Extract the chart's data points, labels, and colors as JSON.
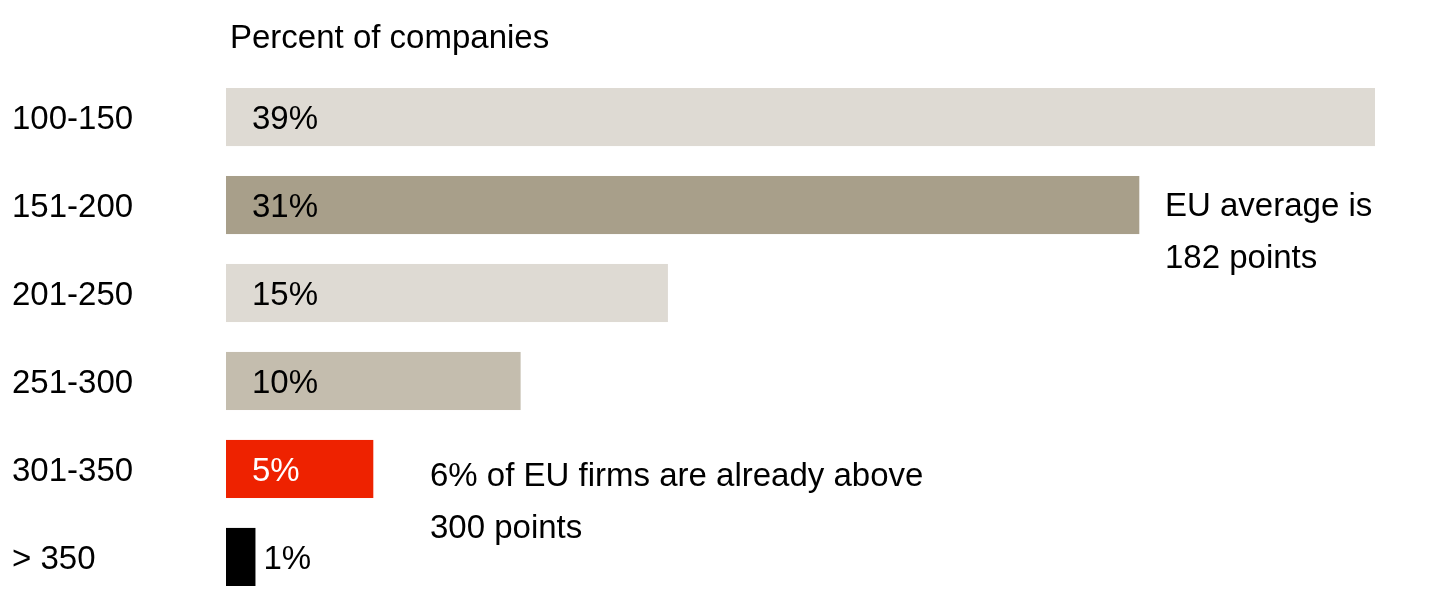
{
  "chart_data": {
    "type": "bar",
    "orientation": "horizontal",
    "title": "Percent of companies",
    "categories": [
      "100-150",
      "151-200",
      "201-250",
      "251-300",
      "301-350",
      "> 350"
    ],
    "values": [
      39,
      31,
      15,
      10,
      5,
      1
    ],
    "colors": [
      "#dedad3",
      "#a89f8a",
      "#dedad3",
      "#c4bdae",
      "#ee2200",
      "#000000"
    ],
    "value_labels": [
      "39%",
      "31%",
      "15%",
      "10%",
      "5%",
      "1%"
    ],
    "annotations": [
      "EU average is 182 points",
      "6% of EU firms are already above 300 points"
    ]
  }
}
